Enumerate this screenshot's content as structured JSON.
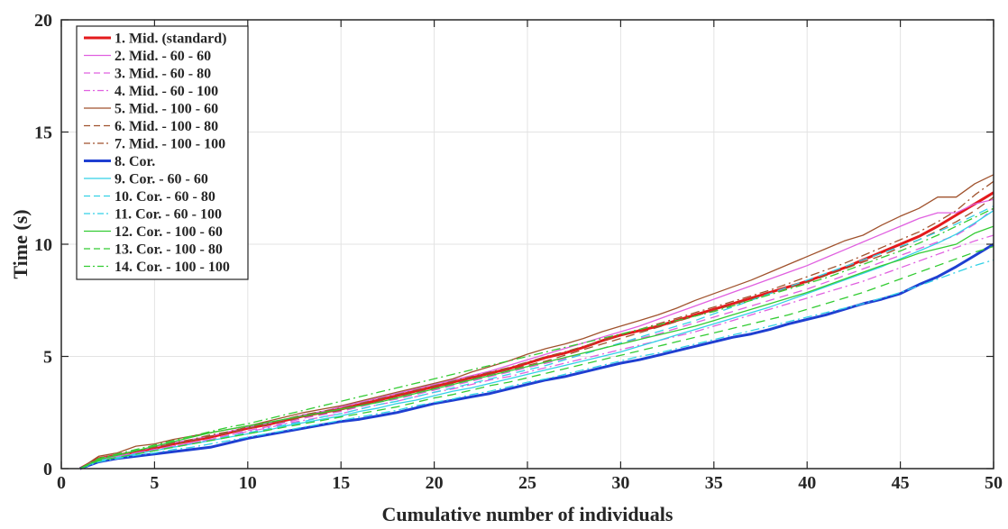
{
  "chart_data": {
    "type": "line",
    "title": "",
    "xlabel": "Cumulative number of individuals",
    "ylabel": "Time (s)",
    "xlim": [
      0,
      50
    ],
    "ylim": [
      0,
      20
    ],
    "xticks": [
      "0",
      "5",
      "10",
      "15",
      "20",
      "25",
      "30",
      "35",
      "40",
      "45",
      "50"
    ],
    "yticks": [
      "0",
      "5",
      "10",
      "15",
      "20"
    ],
    "grid": true,
    "legend_position": "top-left",
    "x": [
      1,
      2,
      3,
      4,
      5,
      6,
      7,
      8,
      9,
      10,
      11,
      12,
      13,
      14,
      15,
      16,
      17,
      18,
      19,
      20,
      21,
      22,
      23,
      24,
      25,
      26,
      27,
      28,
      29,
      30,
      31,
      32,
      33,
      34,
      35,
      36,
      37,
      38,
      39,
      40,
      41,
      42,
      43,
      44,
      45,
      46,
      47,
      48,
      49,
      50
    ],
    "series": [
      {
        "name": "1. Mid. (standard)",
        "color": "#e41a1c",
        "dash": "solid",
        "width": 3,
        "values": [
          0,
          0.45,
          0.6,
          0.75,
          0.9,
          1.1,
          1.25,
          1.4,
          1.6,
          1.8,
          1.95,
          2.15,
          2.35,
          2.5,
          2.65,
          2.85,
          3.05,
          3.25,
          3.45,
          3.65,
          3.85,
          4.05,
          4.25,
          4.45,
          4.7,
          4.95,
          5.15,
          5.4,
          5.7,
          5.95,
          6.15,
          6.35,
          6.6,
          6.85,
          7.1,
          7.35,
          7.6,
          7.85,
          8.1,
          8.35,
          8.65,
          8.95,
          9.3,
          9.65,
          10.0,
          10.35,
          10.8,
          11.3,
          11.8,
          12.3
        ]
      },
      {
        "name": "2. Mid. - 60 - 60",
        "color": "#e060e0",
        "dash": "solid",
        "width": 1.3,
        "values": [
          0,
          0.45,
          0.6,
          0.8,
          0.95,
          1.15,
          1.3,
          1.45,
          1.65,
          1.85,
          2.0,
          2.2,
          2.4,
          2.55,
          2.75,
          2.95,
          3.15,
          3.35,
          3.55,
          3.75,
          3.95,
          4.15,
          4.35,
          4.6,
          4.85,
          5.1,
          5.35,
          5.6,
          5.85,
          6.1,
          6.35,
          6.65,
          6.95,
          7.25,
          7.55,
          7.85,
          8.15,
          8.45,
          8.75,
          9.05,
          9.4,
          9.75,
          10.1,
          10.45,
          10.8,
          11.15,
          11.4,
          11.4,
          11.8,
          12.0
        ]
      },
      {
        "name": "3. Mid. - 60 - 80",
        "color": "#e060e0",
        "dash": "10,6",
        "width": 1.3,
        "values": [
          0,
          0.4,
          0.55,
          0.7,
          0.85,
          1.0,
          1.15,
          1.3,
          1.5,
          1.7,
          1.85,
          2.05,
          2.25,
          2.4,
          2.55,
          2.75,
          2.95,
          3.1,
          3.3,
          3.5,
          3.7,
          3.9,
          4.1,
          4.3,
          4.5,
          4.7,
          4.9,
          5.1,
          5.35,
          5.6,
          5.8,
          6.0,
          6.25,
          6.5,
          6.75,
          7.0,
          7.25,
          7.5,
          7.75,
          8.0,
          8.3,
          8.6,
          8.9,
          9.2,
          9.5,
          9.8,
          10.1,
          10.4,
          10.9,
          11.6
        ]
      },
      {
        "name": "4. Mid. - 60 - 100",
        "color": "#e060e0",
        "dash": "10,4,2,4",
        "width": 1.3,
        "values": [
          0,
          0.4,
          0.55,
          0.7,
          0.85,
          1.0,
          1.15,
          1.3,
          1.5,
          1.65,
          1.8,
          2.0,
          2.15,
          2.3,
          2.45,
          2.65,
          2.85,
          3.0,
          3.2,
          3.4,
          3.55,
          3.75,
          3.95,
          4.1,
          4.3,
          4.5,
          4.7,
          4.9,
          5.1,
          5.3,
          5.5,
          5.7,
          5.9,
          6.1,
          6.35,
          6.6,
          6.85,
          7.1,
          7.35,
          7.6,
          7.85,
          8.1,
          8.35,
          8.65,
          8.95,
          9.25,
          9.55,
          9.85,
          10.15,
          10.4
        ]
      },
      {
        "name": "5. Mid. - 100 - 60",
        "color": "#a0522d",
        "dash": "solid",
        "width": 1.3,
        "values": [
          0,
          0.55,
          0.7,
          1.0,
          1.1,
          1.3,
          1.45,
          1.6,
          1.75,
          1.9,
          2.1,
          2.3,
          2.5,
          2.65,
          2.8,
          3.0,
          3.2,
          3.4,
          3.6,
          3.8,
          4.0,
          4.3,
          4.55,
          4.8,
          5.1,
          5.35,
          5.55,
          5.8,
          6.1,
          6.35,
          6.6,
          6.85,
          7.15,
          7.5,
          7.8,
          8.1,
          8.4,
          8.75,
          9.1,
          9.45,
          9.8,
          10.15,
          10.4,
          10.85,
          11.25,
          11.6,
          12.1,
          12.1,
          12.7,
          13.1
        ]
      },
      {
        "name": "6. Mid. - 100 - 80",
        "color": "#a0522d",
        "dash": "10,6",
        "width": 1.3,
        "values": [
          0,
          0.45,
          0.6,
          0.8,
          0.95,
          1.1,
          1.25,
          1.45,
          1.6,
          1.8,
          1.95,
          2.1,
          2.3,
          2.45,
          2.6,
          2.8,
          3.0,
          3.2,
          3.4,
          3.6,
          3.8,
          4.0,
          4.2,
          4.4,
          4.6,
          4.8,
          5.05,
          5.3,
          5.55,
          5.8,
          6.05,
          6.3,
          6.55,
          6.8,
          7.05,
          7.3,
          7.55,
          7.8,
          8.05,
          8.3,
          8.6,
          8.9,
          9.2,
          9.5,
          9.85,
          10.2,
          10.6,
          11.0,
          11.5,
          12.1
        ]
      },
      {
        "name": "7. Mid. - 100 - 100",
        "color": "#a0522d",
        "dash": "10,4,2,4",
        "width": 1.3,
        "values": [
          0,
          0.45,
          0.6,
          0.8,
          0.95,
          1.15,
          1.3,
          1.5,
          1.65,
          1.85,
          2.0,
          2.2,
          2.4,
          2.55,
          2.7,
          2.9,
          3.1,
          3.3,
          3.5,
          3.7,
          3.9,
          4.1,
          4.3,
          4.5,
          4.75,
          5.0,
          5.2,
          5.45,
          5.7,
          5.95,
          6.2,
          6.45,
          6.7,
          6.95,
          7.2,
          7.45,
          7.7,
          7.95,
          8.25,
          8.55,
          8.85,
          9.15,
          9.5,
          9.85,
          10.2,
          10.55,
          11.0,
          11.5,
          12.2,
          12.8
        ]
      },
      {
        "name": "8. Cor.",
        "color": "#1f3fd1",
        "dash": "solid",
        "width": 3,
        "values": [
          0,
          0.3,
          0.45,
          0.55,
          0.65,
          0.75,
          0.85,
          0.95,
          1.15,
          1.35,
          1.5,
          1.65,
          1.8,
          1.95,
          2.1,
          2.2,
          2.35,
          2.5,
          2.7,
          2.9,
          3.05,
          3.2,
          3.35,
          3.55,
          3.75,
          3.95,
          4.1,
          4.3,
          4.5,
          4.7,
          4.85,
          5.05,
          5.25,
          5.45,
          5.65,
          5.85,
          6.0,
          6.2,
          6.45,
          6.65,
          6.85,
          7.1,
          7.35,
          7.55,
          7.8,
          8.2,
          8.55,
          9.0,
          9.5,
          10.0
        ]
      },
      {
        "name": "9. Cor. - 60 - 60",
        "color": "#33d1e6",
        "dash": "solid",
        "width": 1.3,
        "values": [
          0,
          0.35,
          0.5,
          0.65,
          0.8,
          0.95,
          1.1,
          1.25,
          1.4,
          1.55,
          1.7,
          1.9,
          2.05,
          2.2,
          2.35,
          2.55,
          2.7,
          2.9,
          3.05,
          3.25,
          3.45,
          3.6,
          3.8,
          4.0,
          4.2,
          4.4,
          4.6,
          4.8,
          5.0,
          5.2,
          5.45,
          5.7,
          5.95,
          6.2,
          6.45,
          6.7,
          6.95,
          7.2,
          7.5,
          7.8,
          8.1,
          8.4,
          8.7,
          9.0,
          9.35,
          9.7,
          10.05,
          10.45,
          10.95,
          11.5
        ]
      },
      {
        "name": "10. Cor. - 60 - 80",
        "color": "#33d1e6",
        "dash": "10,6",
        "width": 1.3,
        "values": [
          0,
          0.35,
          0.5,
          0.65,
          0.8,
          0.95,
          1.1,
          1.25,
          1.45,
          1.6,
          1.75,
          1.95,
          2.1,
          2.3,
          2.45,
          2.65,
          2.85,
          3.0,
          3.2,
          3.4,
          3.6,
          3.8,
          4.0,
          4.2,
          4.4,
          4.6,
          4.85,
          5.1,
          5.35,
          5.6,
          5.85,
          6.1,
          6.35,
          6.6,
          6.9,
          7.2,
          7.5,
          7.8,
          8.1,
          8.4,
          8.7,
          9.0,
          9.3,
          9.6,
          9.9,
          10.2,
          10.55,
          10.9,
          11.3,
          11.7
        ]
      },
      {
        "name": "11. Cor. - 60 - 100",
        "color": "#33d1e6",
        "dash": "10,4,2,4",
        "width": 1.3,
        "values": [
          0,
          0.3,
          0.45,
          0.6,
          0.7,
          0.85,
          0.95,
          1.1,
          1.25,
          1.4,
          1.55,
          1.7,
          1.85,
          2.0,
          2.15,
          2.3,
          2.45,
          2.6,
          2.8,
          2.95,
          3.1,
          3.3,
          3.45,
          3.65,
          3.85,
          4.0,
          4.2,
          4.4,
          4.6,
          4.8,
          5.0,
          5.15,
          5.35,
          5.55,
          5.75,
          5.95,
          6.15,
          6.35,
          6.55,
          6.75,
          6.95,
          7.15,
          7.35,
          7.6,
          7.85,
          8.15,
          8.45,
          8.75,
          9.05,
          9.3
        ]
      },
      {
        "name": "12. Cor. - 100 - 60",
        "color": "#33cc33",
        "dash": "solid",
        "width": 1.3,
        "values": [
          0,
          0.4,
          0.6,
          0.8,
          1.0,
          1.2,
          1.4,
          1.6,
          1.75,
          1.9,
          2.05,
          2.2,
          2.35,
          2.5,
          2.65,
          2.8,
          2.95,
          3.15,
          3.35,
          3.55,
          3.75,
          3.95,
          4.15,
          4.35,
          4.55,
          4.75,
          4.95,
          5.15,
          5.35,
          5.55,
          5.75,
          5.95,
          6.15,
          6.35,
          6.6,
          6.85,
          7.1,
          7.35,
          7.6,
          7.85,
          8.15,
          8.45,
          8.75,
          9.05,
          9.3,
          9.6,
          9.8,
          10.0,
          10.5,
          10.8
        ]
      },
      {
        "name": "13. Cor. - 100 - 80",
        "color": "#33cc33",
        "dash": "10,6",
        "width": 1.3,
        "values": [
          0,
          0.35,
          0.5,
          0.65,
          0.8,
          0.95,
          1.1,
          1.25,
          1.4,
          1.55,
          1.7,
          1.85,
          2.0,
          2.15,
          2.3,
          2.45,
          2.6,
          2.75,
          2.95,
          3.15,
          3.3,
          3.5,
          3.7,
          3.85,
          4.05,
          4.25,
          4.45,
          4.65,
          4.85,
          5.05,
          5.25,
          5.45,
          5.65,
          5.85,
          6.05,
          6.25,
          6.45,
          6.65,
          6.85,
          7.1,
          7.35,
          7.6,
          7.85,
          8.15,
          8.45,
          8.75,
          9.05,
          9.35,
          9.65,
          9.9
        ]
      },
      {
        "name": "14. Cor. - 100 - 100",
        "color": "#33cc33",
        "dash": "10,4,2,4",
        "width": 1.3,
        "values": [
          0,
          0.45,
          0.65,
          0.85,
          1.05,
          1.25,
          1.45,
          1.65,
          1.85,
          2.0,
          2.2,
          2.4,
          2.6,
          2.8,
          3.0,
          3.2,
          3.4,
          3.6,
          3.8,
          4.0,
          4.2,
          4.4,
          4.6,
          4.8,
          5.0,
          5.2,
          5.4,
          5.6,
          5.8,
          6.0,
          6.2,
          6.4,
          6.6,
          6.8,
          7.0,
          7.25,
          7.5,
          7.75,
          8.0,
          8.25,
          8.5,
          8.8,
          9.1,
          9.4,
          9.7,
          10.05,
          10.4,
          10.8,
          11.2,
          11.6
        ]
      }
    ]
  }
}
